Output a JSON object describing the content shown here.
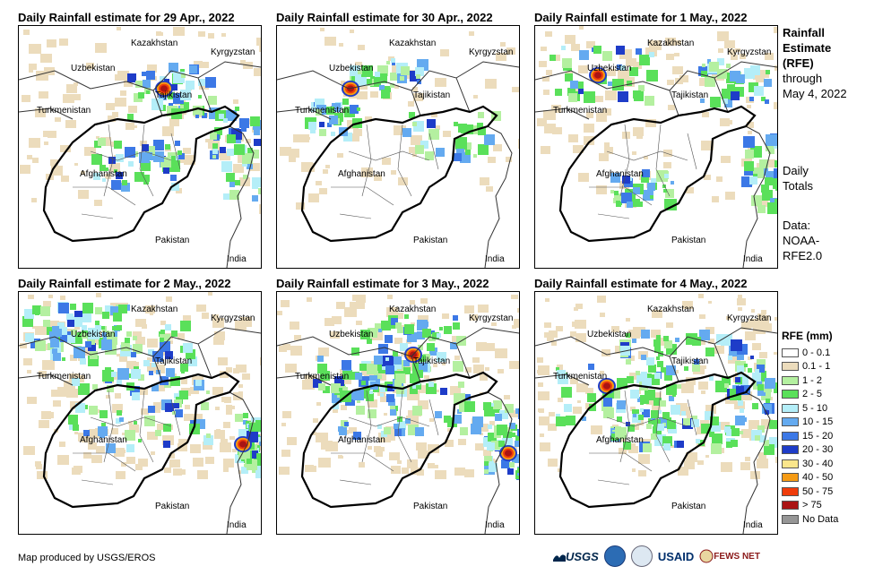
{
  "panels": [
    {
      "title": "Daily Rainfall estimate for 29 Apr., 2022"
    },
    {
      "title": "Daily Rainfall estimate for 30 Apr., 2022"
    },
    {
      "title": "Daily Rainfall estimate for 1 May., 2022"
    },
    {
      "title": "Daily Rainfall estimate for 2 May., 2022"
    },
    {
      "title": "Daily Rainfall estimate for 3 May., 2022"
    },
    {
      "title": "Daily Rainfall estimate for 4 May., 2022"
    }
  ],
  "map_labels": {
    "kazakhstan": "Kazakhstan",
    "kyrgyzstan": "Kyrgyzstan",
    "uzbekistan": "Uzbekistan",
    "tajikistan": "Tajikistan",
    "turkmenistan": "Turkmenistan",
    "afghanistan": "Afghanistan",
    "pakistan": "Pakistan",
    "india": "India"
  },
  "sidebar": {
    "heading_line1": "Rainfall",
    "heading_line2": "Estimate",
    "heading_line3": "(RFE)",
    "through_line1": "through",
    "through_line2": "May 4, 2022",
    "totals_line1": "Daily",
    "totals_line2": "Totals",
    "data_line1": "Data:",
    "data_line2": "NOAA-",
    "data_line3": "RFE2.0"
  },
  "legend": {
    "title": "RFE (mm)",
    "items": [
      {
        "label": "0 - 0.1",
        "color": "#ffffff"
      },
      {
        "label": "0.1 - 1",
        "color": "#ecdcbc"
      },
      {
        "label": "1 - 2",
        "color": "#b4f0a0"
      },
      {
        "label": "2 - 5",
        "color": "#5ae05a"
      },
      {
        "label": "5 - 10",
        "color": "#b4eef8"
      },
      {
        "label": "10 - 15",
        "color": "#64aaf0"
      },
      {
        "label": "15 - 20",
        "color": "#3c78e6"
      },
      {
        "label": "20 - 30",
        "color": "#1e3cc8"
      },
      {
        "label": "30 - 40",
        "color": "#fae68c"
      },
      {
        "label": "40 - 50",
        "color": "#f59b14"
      },
      {
        "label": "50 - 75",
        "color": "#f03c0a"
      },
      {
        "label": "> 75",
        "color": "#aa1414"
      },
      {
        "label": "No Data",
        "color": "#969696"
      }
    ]
  },
  "credit": "Map produced by USGS/EROS",
  "logos": {
    "usgs": "USGS",
    "usaid": "USAID",
    "fewsnet": "FEWS NET"
  }
}
